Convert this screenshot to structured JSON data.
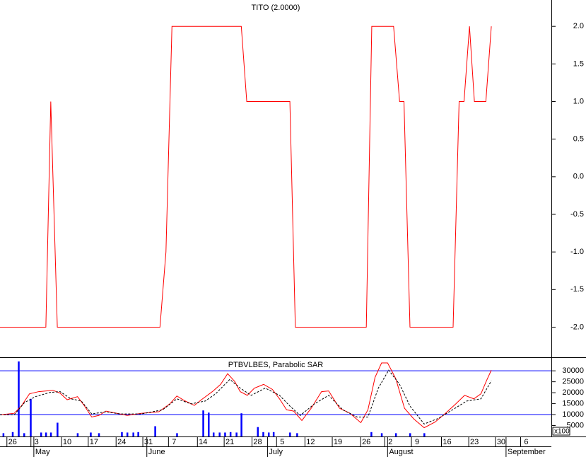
{
  "chart_data": [
    {
      "type": "line",
      "title": "TITO (2.0000)",
      "xlim": [
        0,
        101
      ],
      "ylim": [
        -2.4,
        2.35
      ],
      "yticks": [
        {
          "value": 2,
          "label": "2.0"
        },
        1.5,
        {
          "value": 1,
          "label": "1.0"
        },
        0.5,
        {
          "value": 0,
          "label": "0.0"
        },
        -0.5,
        {
          "value": -1,
          "label": "-1.0"
        },
        -1.5,
        {
          "value": -2,
          "label": "-2.0"
        }
      ],
      "series": [
        {
          "color": "#ff0000",
          "x": [
            0,
            8.4,
            9.3,
            10.5,
            29.3,
            30.4,
            31.5,
            44.2,
            45.2,
            53.1,
            54.1,
            67.1,
            68.1,
            72.1,
            73.2,
            74,
            75.1,
            83,
            84.1,
            85,
            86,
            86.9,
            89,
            90
          ],
          "values": [
            -2,
            -2,
            1,
            -2,
            -2,
            -1,
            2,
            2,
            1,
            1,
            -2,
            -2,
            2,
            2,
            1,
            1,
            -2,
            -2,
            1,
            1,
            2,
            1,
            1,
            2
          ]
        }
      ]
    },
    {
      "type": "line",
      "title": "PTBVLBES, Parabolic SAR",
      "xlim": [
        0,
        101
      ],
      "ylim": [
        0,
        36200
      ],
      "yticks": [
        5000,
        10000,
        15000,
        20000,
        25000,
        30000
      ],
      "y_unit_label": "x100",
      "hlines": [
        30000,
        10000
      ],
      "hline_color": "#0000ff",
      "series": [
        {
          "type": "bar",
          "color": "#0000ff",
          "x": [
            0.6,
            2.3,
            3.4,
            4.4,
            5.6,
            7.5,
            8.4,
            9.3,
            10.5,
            14.2,
            16.6,
            18.1,
            22.3,
            23.3,
            24.4,
            25.3,
            28.4,
            32.4,
            37.2,
            38.2,
            39.1,
            40.2,
            41.2,
            42.2,
            43.3,
            44.2,
            47.2,
            48.2,
            49.2,
            50.1,
            53.1,
            54.4,
            68,
            69.9,
            72.5,
            75.1,
            77.7
          ],
          "values": [
            1500,
            2000,
            34300,
            1500,
            17200,
            1800,
            1800,
            1800,
            6300,
            1500,
            1800,
            1500,
            2000,
            1800,
            1800,
            2000,
            4700,
            1500,
            11900,
            10900,
            1800,
            1800,
            1800,
            2000,
            1800,
            10600,
            4300,
            2000,
            1800,
            2000,
            1800,
            1500,
            2000,
            1500,
            1500,
            1500,
            1500
          ]
        },
        {
          "color": "#ff0000",
          "x": [
            0,
            2.6,
            3.9,
            5.4,
            7.1,
            9.7,
            11,
            12.3,
            14.2,
            15.5,
            16.8,
            18.1,
            19.4,
            21.4,
            23.3,
            25.9,
            29.1,
            31.1,
            32.4,
            33.7,
            35.6,
            36.9,
            38.9,
            40.4,
            41.7,
            43,
            44,
            45.3,
            46.6,
            48.3,
            49.9,
            51.2,
            52.5,
            53.8,
            55.3,
            57,
            58.9,
            60.2,
            62.2,
            64.1,
            66.1,
            67.4,
            68.7,
            69.9,
            71,
            72.5,
            74.1,
            75.8,
            77.7,
            79.7,
            81.6,
            83.5,
            85.1,
            86.8,
            88.1,
            89.1,
            90
          ],
          "values": [
            9900,
            10600,
            13900,
            19500,
            20500,
            21100,
            19800,
            16800,
            18200,
            13900,
            8900,
            9600,
            11600,
            10600,
            9600,
            10600,
            11300,
            14900,
            18500,
            16500,
            14200,
            16800,
            20500,
            23800,
            28700,
            25100,
            20500,
            18800,
            22100,
            23800,
            21500,
            17200,
            12200,
            11600,
            7300,
            12900,
            20500,
            20800,
            12900,
            10600,
            6300,
            12200,
            27000,
            33600,
            33600,
            26400,
            12900,
            8000,
            4000,
            6600,
            10600,
            14900,
            18800,
            17200,
            19500,
            25400,
            30300
          ]
        },
        {
          "color": "#000000",
          "dashed": true,
          "x": [
            0,
            2.6,
            4.5,
            6.5,
            9.1,
            11,
            13,
            14.9,
            16.8,
            19.4,
            22,
            25.9,
            29.8,
            32.4,
            35,
            37.6,
            39.5,
            42.1,
            44,
            46,
            48.6,
            51.2,
            53.1,
            55,
            57.6,
            60.2,
            62.8,
            65.4,
            67.4,
            69.3,
            71.2,
            73.2,
            75.1,
            77.7,
            80.3,
            82.9,
            85.5,
            88.1,
            90
          ],
          "values": [
            9900,
            9900,
            15500,
            18200,
            20100,
            20500,
            17200,
            16200,
            10300,
            11300,
            10300,
            10300,
            12200,
            17200,
            14900,
            16200,
            19500,
            26100,
            22100,
            18800,
            22100,
            18800,
            13900,
            9600,
            14900,
            18800,
            12200,
            8900,
            8900,
            22100,
            30300,
            23800,
            13900,
            5700,
            8300,
            12200,
            16200,
            17200,
            25400
          ]
        }
      ],
      "xticks": [
        {
          "value": 2.3,
          "label": "26"
        },
        {
          "value": 6.7,
          "label": "3"
        },
        {
          "value": 12.3,
          "label": "10"
        },
        {
          "value": 17.2,
          "label": "17"
        },
        {
          "value": 22.3,
          "label": "24"
        },
        {
          "value": 27.2,
          "label": "31"
        },
        {
          "value": 31.9,
          "label": "7"
        },
        {
          "value": 37.2,
          "label": "14"
        },
        {
          "value": 42.1,
          "label": "21"
        },
        {
          "value": 47.2,
          "label": "28"
        },
        {
          "value": 51.7,
          "label": "5"
        },
        {
          "value": 56.9,
          "label": "12"
        },
        {
          "value": 61.9,
          "label": "19"
        },
        {
          "value": 67.1,
          "label": "26"
        },
        {
          "value": 71.5,
          "label": "2"
        },
        {
          "value": 76.4,
          "label": "9"
        },
        {
          "value": 81.9,
          "label": "16"
        },
        {
          "value": 86.9,
          "label": "23"
        },
        {
          "value": 91.8,
          "label": "30"
        },
        {
          "value": 96.4,
          "label": "6"
        }
      ],
      "month_ticks": [
        {
          "value": 6.2,
          "label": "May"
        },
        {
          "value": 26.9,
          "label": "June"
        },
        {
          "value": 49,
          "label": "July"
        },
        {
          "value": 71,
          "label": "August"
        },
        {
          "value": 92.7,
          "label": "September"
        }
      ]
    }
  ]
}
